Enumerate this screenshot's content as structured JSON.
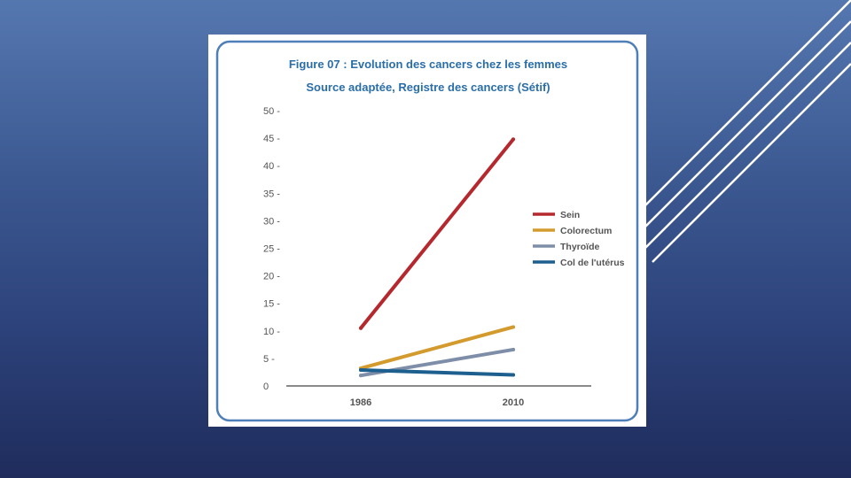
{
  "colors": {
    "frame": "#4f7fb8",
    "title": "#2a6ea8",
    "axis": "#444444",
    "sein": "#b5282d",
    "colorectum": "#d39a2e",
    "thyroide": "#7f8ea8",
    "col_uterus": "#1d5f8e"
  },
  "chart_data": {
    "type": "line",
    "title": "Figure 07 : Evolution des cancers chez les femmes",
    "subtitle": "Source adaptée, Registre des cancers (Sétif)",
    "xlabel": "",
    "ylabel": "",
    "categories": [
      "1986",
      "2010"
    ],
    "ylim": [
      0,
      50
    ],
    "yticks": [
      "0",
      "5 -",
      "10 -",
      "15 -",
      "20 -",
      "25 -",
      "30 -",
      "35 -",
      "40 -",
      "45 -",
      "50 -"
    ],
    "grid": false,
    "legend_position": "right",
    "series": [
      {
        "name": "Sein",
        "values": [
          10.5,
          44.8
        ],
        "color": "#b5282d"
      },
      {
        "name": "Colorectum",
        "values": [
          3.2,
          10.7
        ],
        "color": "#d39a2e"
      },
      {
        "name": "Thyroïde",
        "values": [
          1.9,
          6.6
        ],
        "color": "#7f8ea8"
      },
      {
        "name": "Col de l'utérus",
        "values": [
          2.9,
          2.0
        ],
        "color": "#1d5f8e"
      }
    ]
  }
}
